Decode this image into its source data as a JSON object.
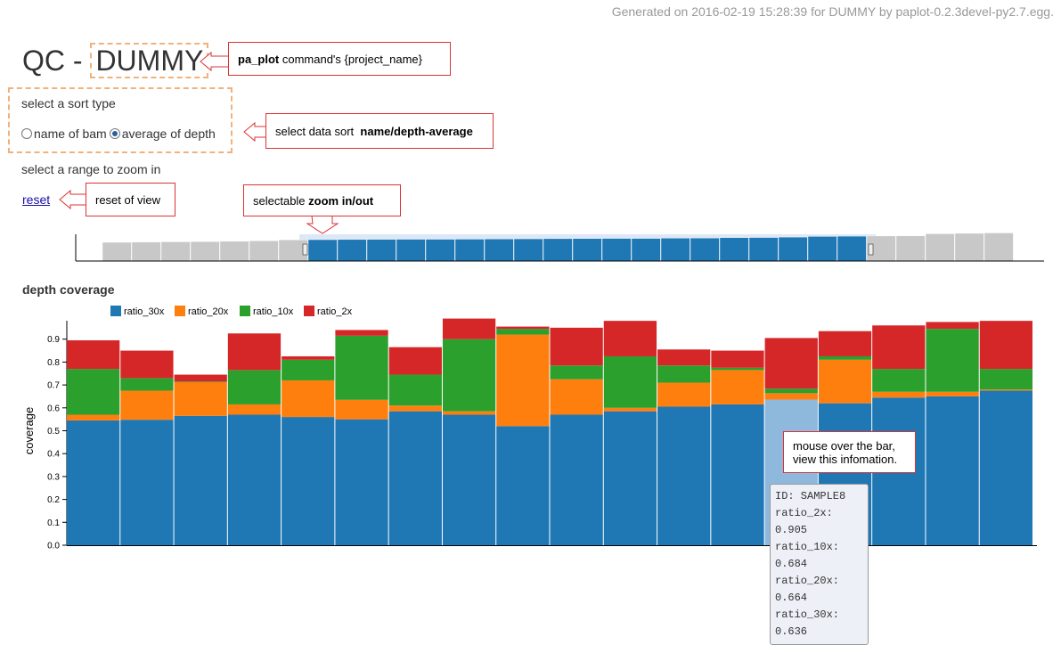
{
  "header": {
    "generated_text": "Generated on 2016-02-19 15:28:39 for DUMMY by paplot-0.2.3devel-py2.7.egg.",
    "title_prefix": "QC -",
    "project_name": "DUMMY"
  },
  "controls": {
    "sort_label": "select a sort type",
    "sort_options": [
      "name of bam",
      "average of depth"
    ],
    "sort_selected": "average of depth",
    "zoom_label": "select a range to zoom in",
    "reset_label": "reset"
  },
  "annotations": {
    "project": "<b>pa_plot</b> command's {project_name}",
    "sort": "select data sort <b>&nbsp;name/depth-average</b>",
    "reset": "reset of view",
    "zoom": "selectable <b>zoom in/out</b>",
    "hover_line1": "mouse over the bar,",
    "hover_line2": "view this infomation."
  },
  "tooltip": {
    "lines": [
      "ID: SAMPLE8",
      "ratio_2x: 0.905",
      "ratio_10x: 0.684",
      "ratio_20x: 0.664",
      "ratio_30x: 0.636"
    ]
  },
  "colors": {
    "ratio_30x": "#1f77b4",
    "ratio_20x": "#ff7f0e",
    "ratio_10x": "#2ca02c",
    "ratio_2x": "#d62728",
    "highlight": "#8fb8dd",
    "brush_gray": "#c8c8c8"
  },
  "chart_data": {
    "type": "bar",
    "title": "depth coverage",
    "ylabel": "coverage",
    "ylim": [
      0,
      1
    ],
    "yticks": [
      "0.0",
      "0.1",
      "0.2",
      "0.3",
      "0.4",
      "0.5",
      "0.6",
      "0.7",
      "0.8",
      "0.9"
    ],
    "stacked": true,
    "legend": [
      "ratio_30x",
      "ratio_20x",
      "ratio_10x",
      "ratio_2x"
    ],
    "highlighted_index": 13,
    "bars": [
      {
        "ratio_30x": 0.545,
        "ratio_20x": 0.57,
        "ratio_10x": 0.77,
        "ratio_2x": 0.895
      },
      {
        "ratio_30x": 0.548,
        "ratio_20x": 0.675,
        "ratio_10x": 0.73,
        "ratio_2x": 0.85
      },
      {
        "ratio_30x": 0.565,
        "ratio_20x": 0.712,
        "ratio_10x": 0.715,
        "ratio_2x": 0.745
      },
      {
        "ratio_30x": 0.57,
        "ratio_20x": 0.615,
        "ratio_10x": 0.765,
        "ratio_2x": 0.925
      },
      {
        "ratio_30x": 0.56,
        "ratio_20x": 0.72,
        "ratio_10x": 0.81,
        "ratio_2x": 0.825
      },
      {
        "ratio_30x": 0.55,
        "ratio_20x": 0.635,
        "ratio_10x": 0.915,
        "ratio_2x": 0.94
      },
      {
        "ratio_30x": 0.585,
        "ratio_20x": 0.61,
        "ratio_10x": 0.745,
        "ratio_2x": 0.865
      },
      {
        "ratio_30x": 0.57,
        "ratio_20x": 0.585,
        "ratio_10x": 0.9,
        "ratio_2x": 0.99
      },
      {
        "ratio_30x": 0.52,
        "ratio_20x": 0.92,
        "ratio_10x": 0.945,
        "ratio_2x": 0.955
      },
      {
        "ratio_30x": 0.57,
        "ratio_20x": 0.725,
        "ratio_10x": 0.785,
        "ratio_2x": 0.95
      },
      {
        "ratio_30x": 0.585,
        "ratio_20x": 0.6,
        "ratio_10x": 0.825,
        "ratio_2x": 0.98
      },
      {
        "ratio_30x": 0.605,
        "ratio_20x": 0.71,
        "ratio_10x": 0.785,
        "ratio_2x": 0.855
      },
      {
        "ratio_30x": 0.615,
        "ratio_20x": 0.765,
        "ratio_10x": 0.775,
        "ratio_2x": 0.85
      },
      {
        "ratio_30x": 0.636,
        "ratio_20x": 0.664,
        "ratio_10x": 0.684,
        "ratio_2x": 0.905
      },
      {
        "ratio_30x": 0.62,
        "ratio_20x": 0.81,
        "ratio_10x": 0.825,
        "ratio_2x": 0.935
      },
      {
        "ratio_30x": 0.645,
        "ratio_20x": 0.67,
        "ratio_10x": 0.77,
        "ratio_2x": 0.96
      },
      {
        "ratio_30x": 0.65,
        "ratio_20x": 0.67,
        "ratio_10x": 0.945,
        "ratio_2x": 0.975
      },
      {
        "ratio_30x": 0.675,
        "ratio_20x": 0.68,
        "ratio_10x": 0.77,
        "ratio_2x": 0.98
      }
    ],
    "overview": {
      "values": [
        0.832,
        0.835,
        0.838,
        0.841,
        0.844,
        0.85,
        0.862,
        0.864,
        0.866,
        0.868,
        0.869,
        0.869,
        0.87,
        0.872,
        0.874,
        0.876,
        0.877,
        0.879,
        0.879,
        0.882,
        0.884,
        0.888,
        0.89,
        0.895,
        0.903,
        0.906,
        0.908,
        0.91,
        0.935,
        0.94,
        0.945
      ],
      "selected_range": [
        7,
        25
      ]
    }
  }
}
